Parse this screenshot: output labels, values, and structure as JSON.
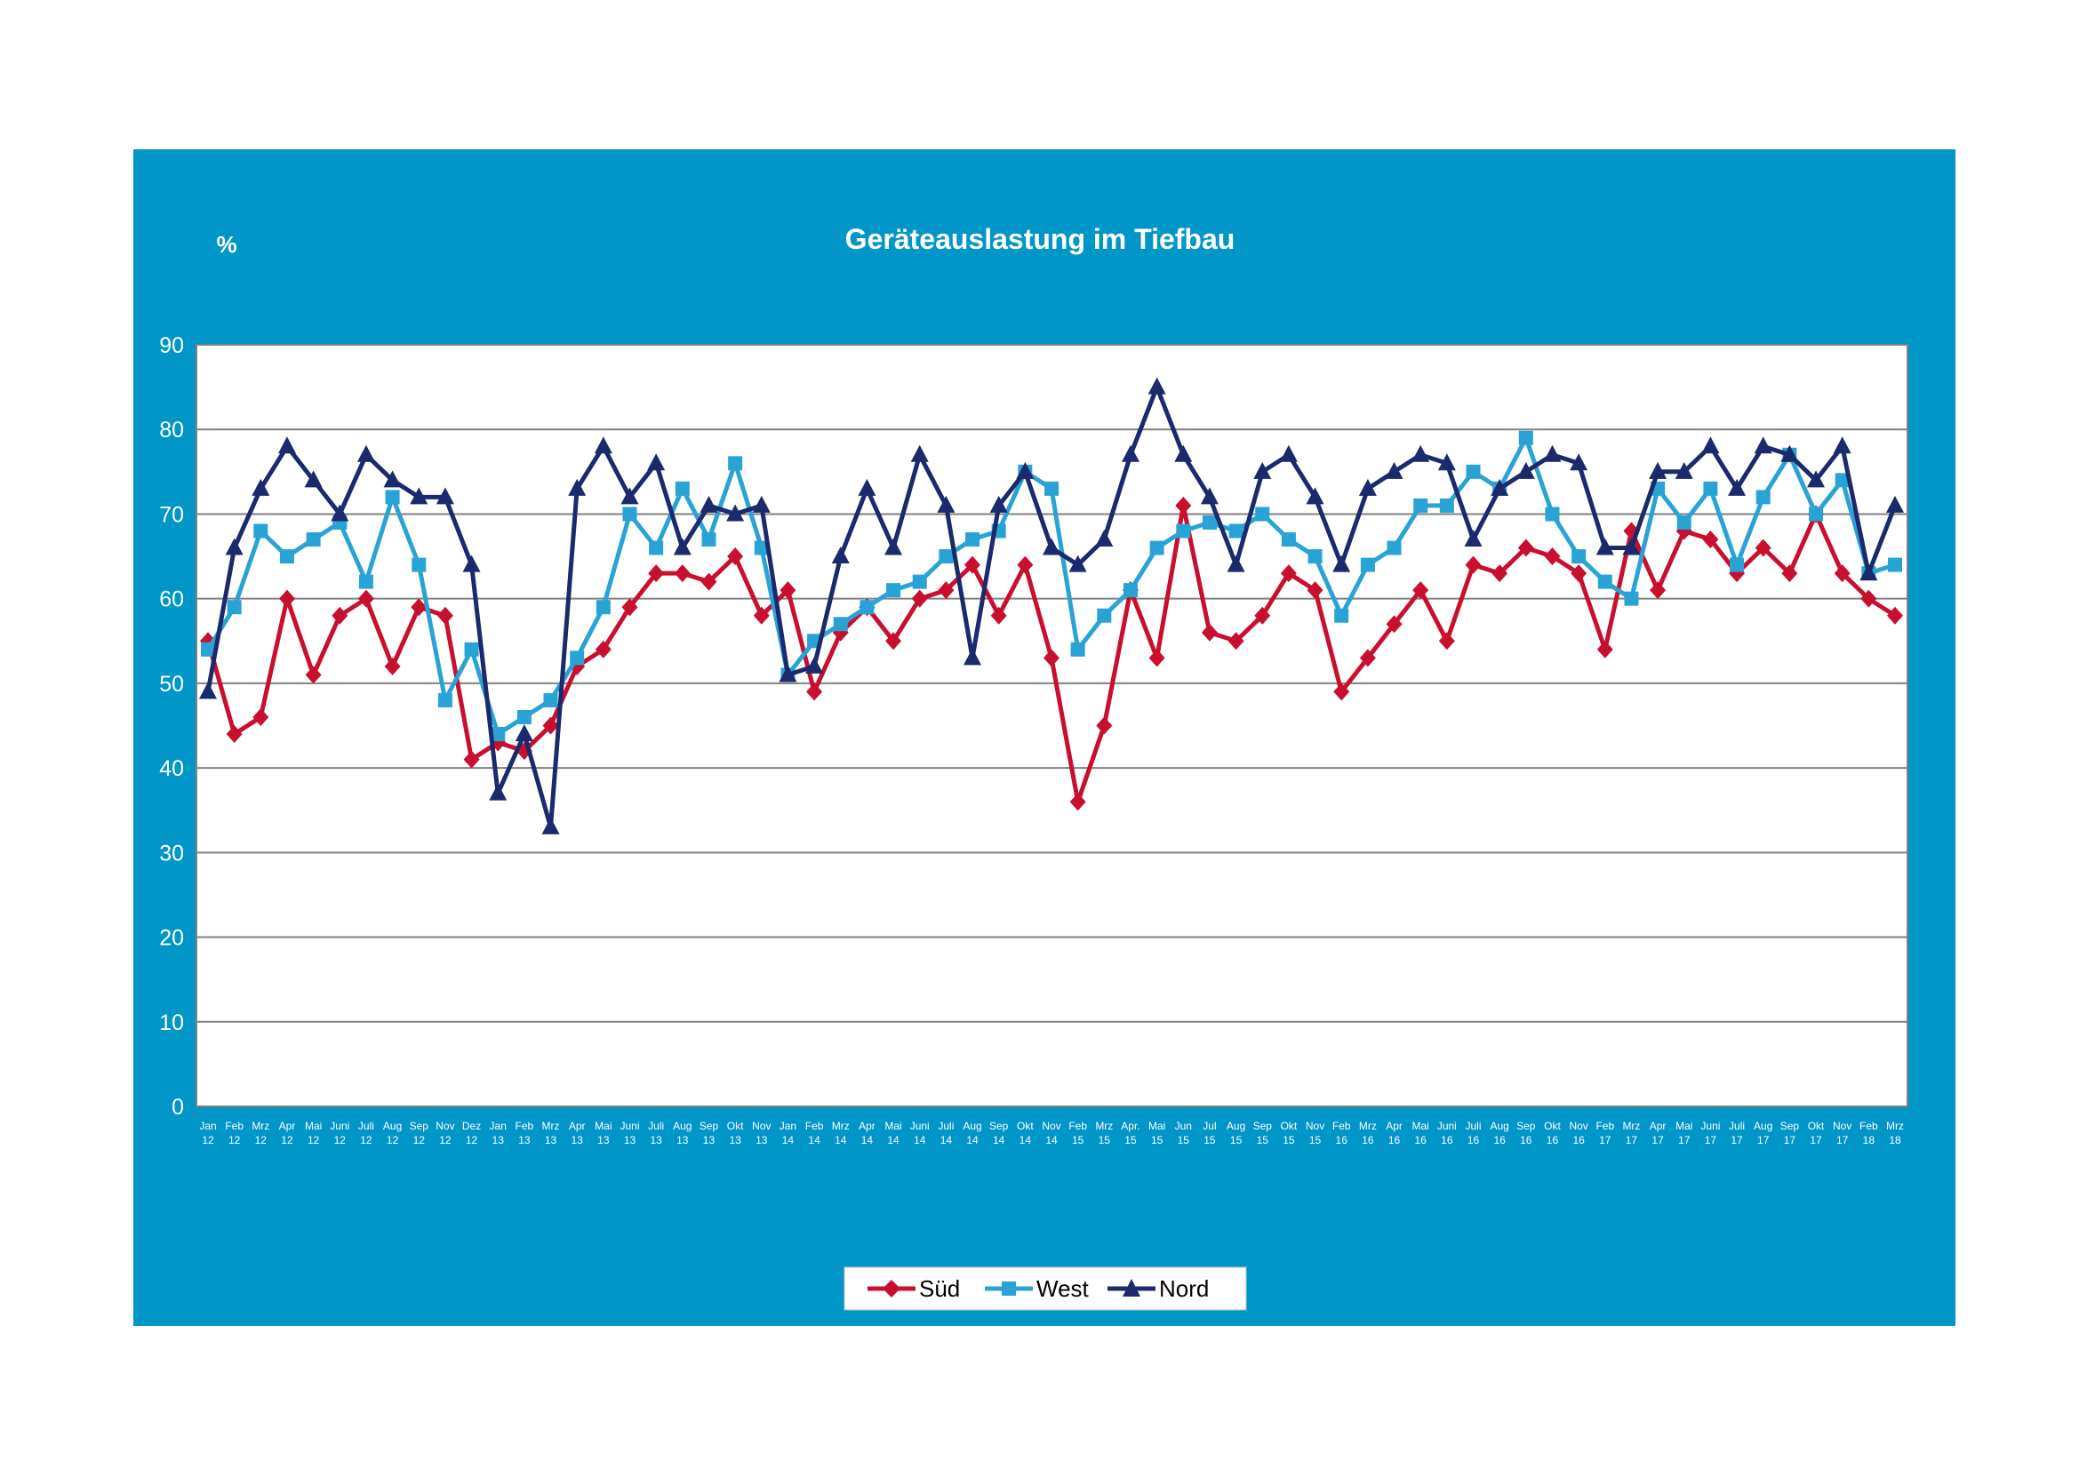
{
  "chart_data": {
    "type": "line",
    "title": "Geräteauslastung im Tiefbau",
    "ylabel": "%",
    "ylim": [
      0,
      90
    ],
    "yticks": [
      "0",
      "10",
      "20",
      "30",
      "40",
      "50",
      "60",
      "70",
      "80",
      "90"
    ],
    "grid": true,
    "legend_position": "bottom",
    "colors": {
      "panel": "#0096c8",
      "plot_bg": "#ffffff",
      "grid": "#808080"
    },
    "categories": [
      [
        "Jan",
        "12"
      ],
      [
        "Feb",
        "12"
      ],
      [
        "Mrz",
        "12"
      ],
      [
        "Apr",
        "12"
      ],
      [
        "Mai",
        "12"
      ],
      [
        "Juni",
        "12"
      ],
      [
        "Juli",
        "12"
      ],
      [
        "Aug",
        "12"
      ],
      [
        "Sep",
        "12"
      ],
      [
        "Nov",
        "12"
      ],
      [
        "Dez",
        "12"
      ],
      [
        "Jan",
        "13"
      ],
      [
        "Feb",
        "13"
      ],
      [
        "Mrz",
        "13"
      ],
      [
        "Apr",
        "13"
      ],
      [
        "Mai",
        "13"
      ],
      [
        "Juni",
        "13"
      ],
      [
        "Juli",
        "13"
      ],
      [
        "Aug",
        "13"
      ],
      [
        "Sep",
        "13"
      ],
      [
        "Okt",
        "13"
      ],
      [
        "Nov",
        "13"
      ],
      [
        "Jan",
        "14"
      ],
      [
        "Feb",
        "14"
      ],
      [
        "Mrz",
        "14"
      ],
      [
        "Apr",
        "14"
      ],
      [
        "Mai",
        "14"
      ],
      [
        "Juni",
        "14"
      ],
      [
        "Juli",
        "14"
      ],
      [
        "Aug",
        "14"
      ],
      [
        "Sep",
        "14"
      ],
      [
        "Okt",
        "14"
      ],
      [
        "Nov",
        "14"
      ],
      [
        "Feb",
        "15"
      ],
      [
        "Mrz",
        "15"
      ],
      [
        "Apr.",
        "15"
      ],
      [
        "Mai",
        "15"
      ],
      [
        "Jun",
        "15"
      ],
      [
        "Jul",
        "15"
      ],
      [
        "Aug",
        "15"
      ],
      [
        "Sep",
        "15"
      ],
      [
        "Okt",
        "15"
      ],
      [
        "Nov",
        "15"
      ],
      [
        "Feb",
        "16"
      ],
      [
        "Mrz",
        "16"
      ],
      [
        "Apr",
        "16"
      ],
      [
        "Mai",
        "16"
      ],
      [
        "Juni",
        "16"
      ],
      [
        "Juli",
        "16"
      ],
      [
        "Aug",
        "16"
      ],
      [
        "Sep",
        "16"
      ],
      [
        "Okt",
        "16"
      ],
      [
        "Nov",
        "16"
      ],
      [
        "Feb",
        "17"
      ],
      [
        "Mrz",
        "17"
      ],
      [
        "Apr",
        "17"
      ],
      [
        "Mai",
        "17"
      ],
      [
        "Juni",
        "17"
      ],
      [
        "Juli",
        "17"
      ],
      [
        "Aug",
        "17"
      ],
      [
        "Sep",
        "17"
      ],
      [
        "Okt",
        "17"
      ],
      [
        "Nov",
        "17"
      ],
      [
        "Feb",
        "18"
      ],
      [
        "Mrz",
        "18"
      ]
    ],
    "series": [
      {
        "name": "Süd",
        "color": "#c8102e",
        "marker": "diamond",
        "values": [
          55,
          44,
          46,
          60,
          51,
          58,
          60,
          52,
          59,
          58,
          41,
          43,
          42,
          45,
          52,
          54,
          59,
          63,
          63,
          62,
          65,
          58,
          61,
          49,
          56,
          59,
          55,
          60,
          61,
          64,
          58,
          64,
          53,
          36,
          45,
          61,
          53,
          71,
          56,
          55,
          58,
          63,
          61,
          49,
          53,
          57,
          61,
          55,
          64,
          63,
          66,
          65,
          63,
          54,
          68,
          61,
          68,
          67,
          63,
          66,
          63,
          70,
          63,
          60,
          58
        ]
      },
      {
        "name": "West",
        "color": "#29a3d6",
        "marker": "square",
        "values": [
          54,
          59,
          68,
          65,
          67,
          69,
          62,
          72,
          64,
          48,
          54,
          44,
          46,
          48,
          53,
          59,
          70,
          66,
          73,
          67,
          76,
          66,
          51,
          55,
          57,
          59,
          61,
          62,
          65,
          67,
          68,
          75,
          73,
          54,
          58,
          61,
          66,
          68,
          69,
          68,
          70,
          67,
          65,
          58,
          64,
          66,
          71,
          71,
          75,
          73,
          79,
          70,
          65,
          62,
          60,
          73,
          69,
          73,
          64,
          72,
          77,
          70,
          74,
          63,
          64
        ]
      },
      {
        "name": "Nord",
        "color": "#1a2a6c",
        "marker": "triangle",
        "values": [
          49,
          66,
          73,
          78,
          74,
          70,
          77,
          74,
          72,
          72,
          64,
          37,
          44,
          33,
          73,
          78,
          72,
          76,
          66,
          71,
          70,
          71,
          51,
          52,
          65,
          73,
          66,
          77,
          71,
          53,
          71,
          75,
          66,
          64,
          67,
          77,
          85,
          77,
          72,
          64,
          75,
          77,
          72,
          64,
          73,
          75,
          77,
          76,
          67,
          73,
          75,
          77,
          76,
          66,
          66,
          75,
          75,
          78,
          73,
          78,
          77,
          74,
          78,
          63,
          71
        ]
      }
    ]
  }
}
